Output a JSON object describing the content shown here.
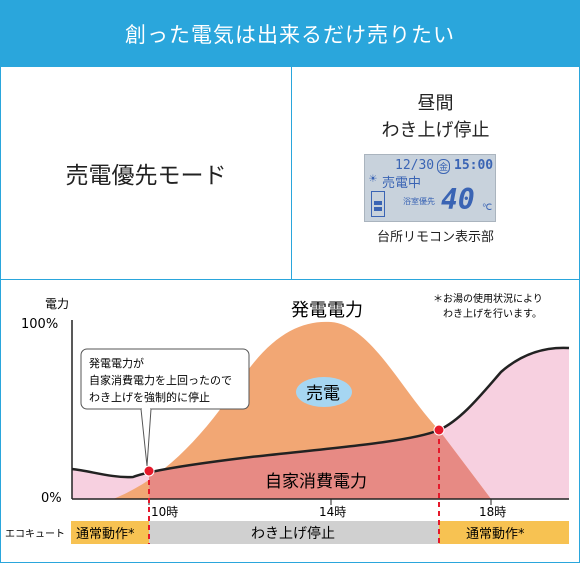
{
  "header": {
    "title": "創った電気は出来るだけ売りたい"
  },
  "mode": {
    "label": "売電優先モード"
  },
  "remote": {
    "title_line1": "昼間",
    "title_line2": "わき上げ停止",
    "lcd": {
      "date": "12/30",
      "day": "金",
      "time": "15:00",
      "status": "売電中",
      "mode": "浴室優先",
      "temp": "40",
      "unit": "℃"
    },
    "caption": "台所リモコン表示部"
  },
  "chart": {
    "ylabel": "電力",
    "y_top": "100%",
    "y_bottom": "0%",
    "note_line1": "＊お湯の使用状況により",
    "note_line2": "わき上げを行います。",
    "generation_label": "発電電力",
    "consumption_label": "自家消費電力",
    "sale_label": "売電",
    "callout": [
      "発電電力が",
      "自家消費電力を上回ったので",
      "わき上げを強制的に停止"
    ],
    "ticks": [
      "10時",
      "14時",
      "18時"
    ],
    "ecocute_label": "エコキュート",
    "segments": [
      "通常動作*",
      "わき上げ停止",
      "通常動作*"
    ],
    "colors": {
      "generation": "#f2a774",
      "consumption": "#e78a84",
      "ecocute_normal": "#f7c252",
      "ecocute_stop": "#d0d0d0",
      "pink": "#f7d0e0",
      "marker": "#e5192b",
      "accent": "#2aa6dc"
    }
  }
}
